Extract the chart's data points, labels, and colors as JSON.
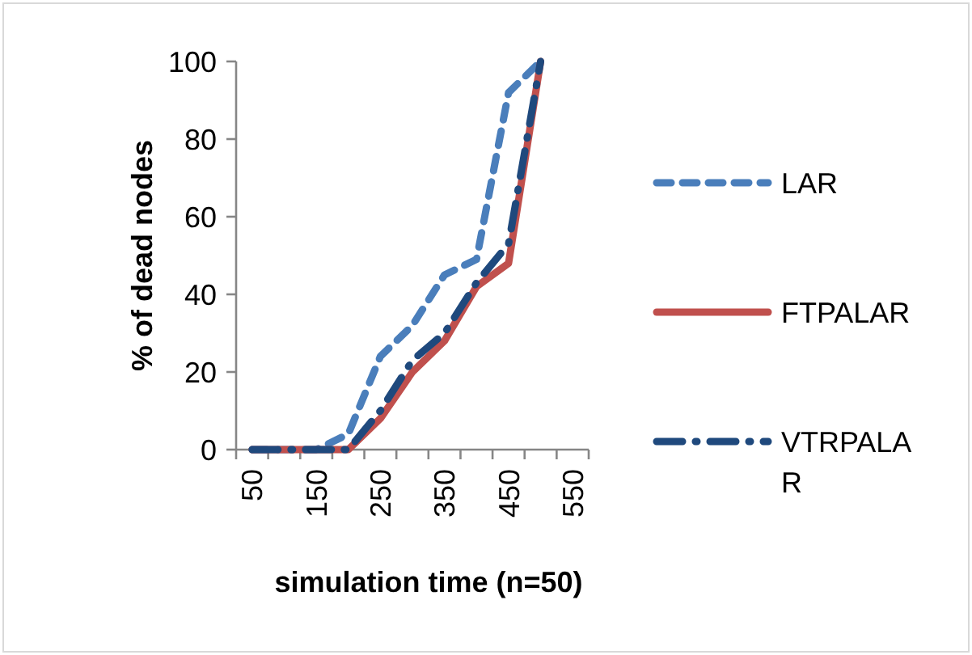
{
  "chart_data": {
    "type": "line",
    "xlabel": "simulation time (n=50)",
    "ylabel": "% of dead nodes",
    "categories": [
      "50",
      null,
      "150",
      null,
      "250",
      null,
      "350",
      null,
      "450",
      null,
      "550"
    ],
    "series": [
      {
        "name": "LAR",
        "color": "#4a7ebb",
        "line_style": "dashed",
        "values": [
          0,
          0,
          0,
          4,
          24,
          32,
          45,
          49,
          92,
          100,
          null
        ]
      },
      {
        "name": "FTPALAR",
        "color": "#c0504d",
        "line_style": "solid",
        "values": [
          0,
          0,
          0,
          0,
          8,
          20,
          28,
          42,
          48,
          100,
          null
        ]
      },
      {
        "name": "VTRPALAR",
        "color": "#1f497d",
        "line_style": "dashed",
        "values": [
          0,
          0,
          0,
          0,
          10,
          23,
          30,
          43,
          53,
          100,
          null
        ]
      }
    ],
    "ylim": [
      0,
      100
    ],
    "yticks": [
      0,
      20,
      40,
      60,
      80,
      100
    ],
    "grid": false,
    "legend": "right",
    "marker": "none"
  }
}
